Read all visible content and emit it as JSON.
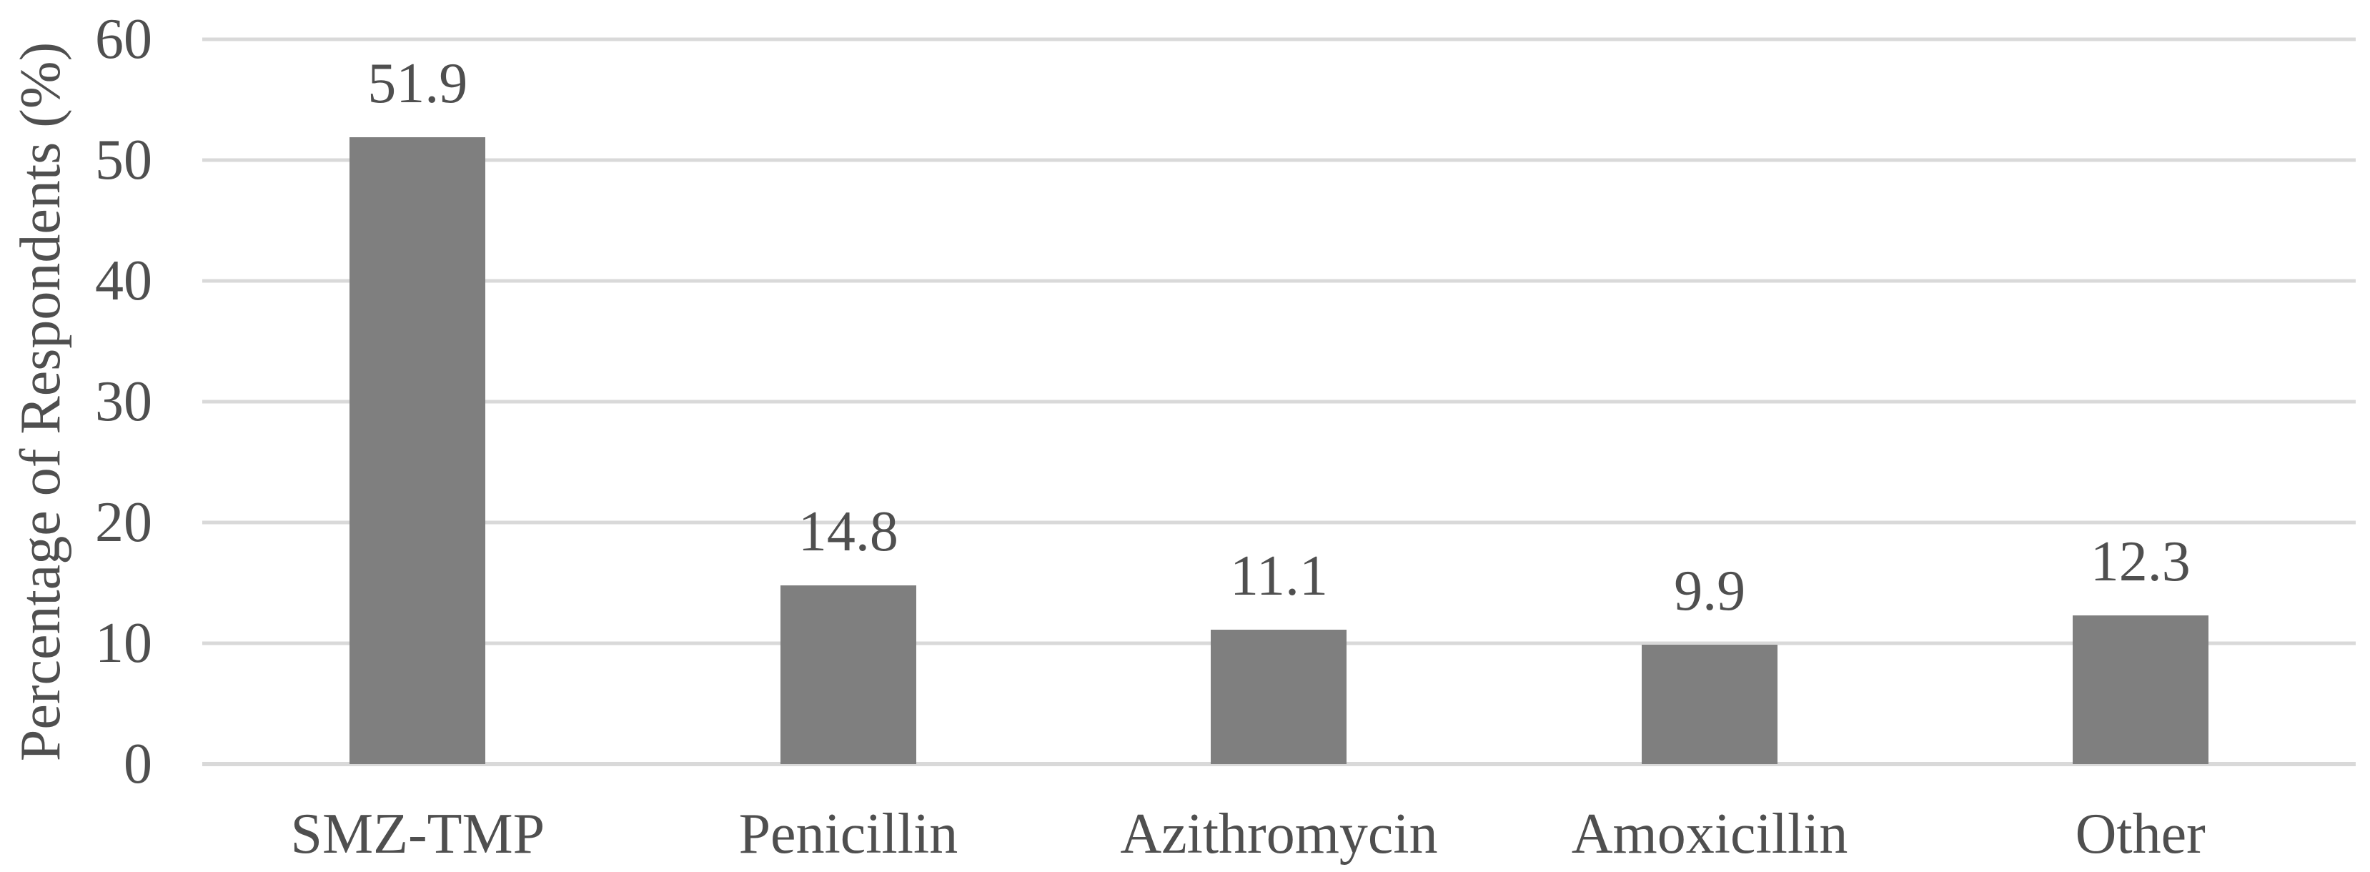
{
  "chart_data": {
    "type": "bar",
    "title": "",
    "categories": [
      "SMZ-TMP",
      "Penicillin",
      "Azithromycin",
      "Amoxicillin",
      "Other"
    ],
    "values": [
      51.9,
      14.8,
      11.1,
      9.9,
      12.3
    ],
    "value_labels": [
      "51.9",
      "14.8",
      "11.1",
      "9.9",
      "12.3"
    ],
    "xlabel": "",
    "ylabel": "Percentage of Respondents (%)",
    "ylim": [
      0,
      60
    ],
    "yticks": [
      0,
      10,
      20,
      30,
      40,
      50,
      60
    ],
    "grid": "horizontal-only",
    "legend_position": "none",
    "bar_color": "#7f7f7f",
    "gridline_color": "#d9d9d9",
    "axis_line_color": "#d9d9d9",
    "text_color": "#4f4f4f",
    "background_color": "#ffffff"
  }
}
